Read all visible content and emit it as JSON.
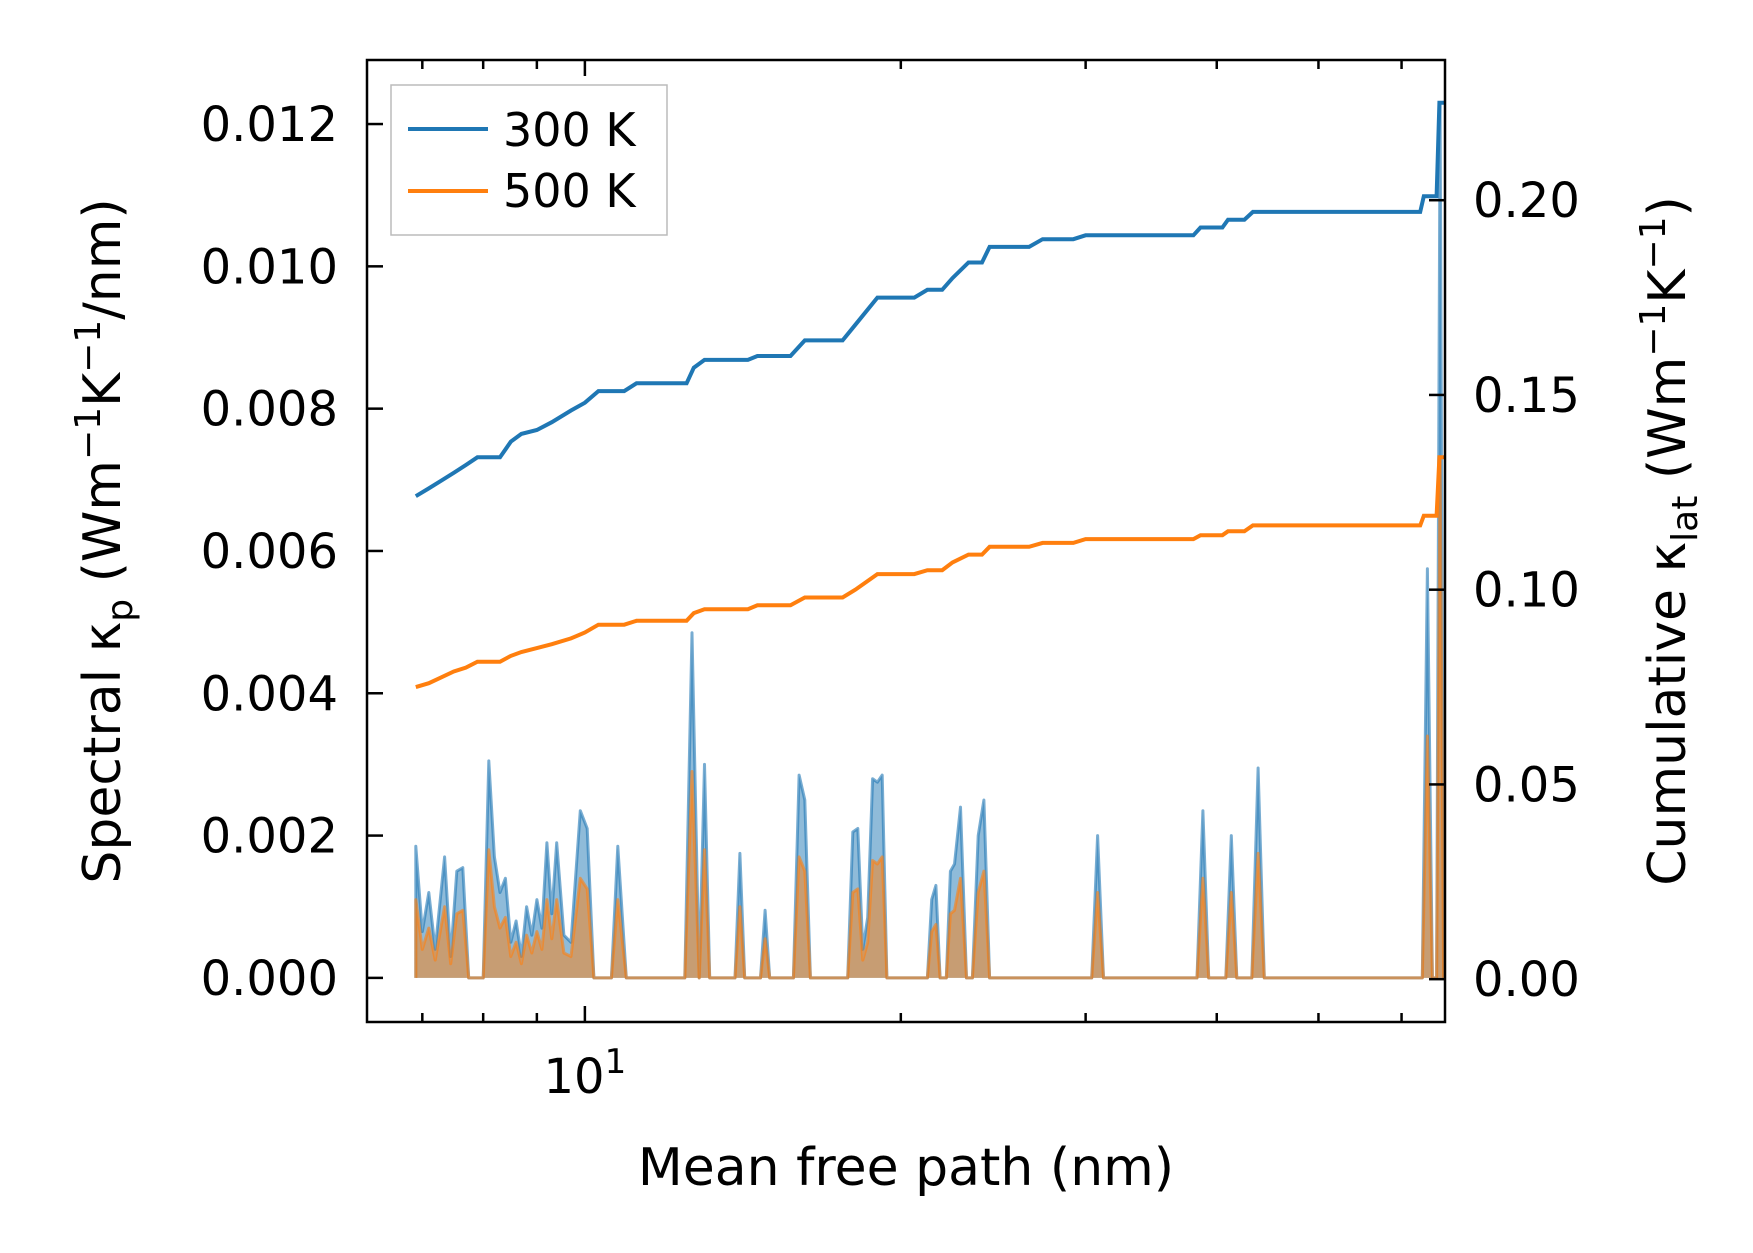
{
  "chart_data": {
    "type": "line",
    "xscale": "log",
    "xlim": [
      6.2,
      66.0
    ],
    "ylim_left": [
      -0.00062,
      0.0129
    ],
    "ylim_right": [
      -0.011,
      0.236
    ],
    "xlabel": "Mean free path (nm)",
    "ylabel_left": {
      "main": "Spectral κ",
      "sub": "p",
      "units_pre": " (Wm",
      "sup1": "−1",
      "mid": "K",
      "sup2": "−1",
      "post": "/nm)"
    },
    "ylabel_right": {
      "main": "Cumulative κ",
      "sub": "lat",
      "units_pre": " (Wm",
      "sup1": "−1",
      "mid": "K",
      "sup2": "−1",
      "post": ")"
    },
    "x_major_ticks": [
      {
        "value": 10,
        "base": "10",
        "exp": "1"
      }
    ],
    "x_minor_ticks": [
      7,
      8,
      9,
      20,
      30,
      40,
      50,
      60
    ],
    "yticks_left": [
      "0.000",
      "0.002",
      "0.004",
      "0.006",
      "0.008",
      "0.010",
      "0.012"
    ],
    "yticks_left_values": [
      0,
      0.002,
      0.004,
      0.006,
      0.008,
      0.01,
      0.012
    ],
    "yticks_right": [
      "0.00",
      "0.05",
      "0.10",
      "0.15",
      "0.20"
    ],
    "yticks_right_values": [
      0,
      0.05,
      0.1,
      0.15,
      0.2
    ],
    "legend": {
      "position": "top-left",
      "entries": [
        "300 K",
        "500 K"
      ]
    },
    "colors": {
      "s300": "#1f77b4",
      "s500": "#ff7f0e"
    },
    "spectral": [
      {
        "name": "300 K",
        "points": [
          [
            6.9,
            0.0
          ],
          [
            6.9,
            0.00185
          ],
          [
            7.0,
            0.00065
          ],
          [
            7.1,
            0.0012
          ],
          [
            7.2,
            0.0004
          ],
          [
            7.35,
            0.0017
          ],
          [
            7.45,
            0.0003
          ],
          [
            7.55,
            0.0015
          ],
          [
            7.65,
            0.00155
          ],
          [
            7.75,
            0.0
          ],
          [
            8.0,
            0.0
          ],
          [
            8.1,
            0.00305
          ],
          [
            8.2,
            0.0017
          ],
          [
            8.3,
            0.0012
          ],
          [
            8.4,
            0.0014
          ],
          [
            8.5,
            0.0005
          ],
          [
            8.6,
            0.0008
          ],
          [
            8.7,
            0.0003
          ],
          [
            8.8,
            0.001
          ],
          [
            8.9,
            0.0006
          ],
          [
            9.0,
            0.0011
          ],
          [
            9.1,
            0.0007
          ],
          [
            9.2,
            0.0019
          ],
          [
            9.3,
            0.0009
          ],
          [
            9.4,
            0.0019
          ],
          [
            9.55,
            0.0006
          ],
          [
            9.7,
            0.0005
          ],
          [
            9.9,
            0.00235
          ],
          [
            10.05,
            0.0021
          ],
          [
            10.2,
            0.0
          ],
          [
            10.6,
            0.0
          ],
          [
            10.75,
            0.00185
          ],
          [
            10.95,
            0.0
          ],
          [
            12.45,
            0.0
          ],
          [
            12.65,
            0.00485
          ],
          [
            12.85,
            0.0
          ],
          [
            13.0,
            0.003
          ],
          [
            13.15,
            0.0
          ],
          [
            13.9,
            0.0
          ],
          [
            14.05,
            0.00175
          ],
          [
            14.2,
            0.0
          ],
          [
            14.7,
            0.0
          ],
          [
            14.85,
            0.00095
          ],
          [
            15.0,
            0.0
          ],
          [
            15.8,
            0.0
          ],
          [
            16.0,
            0.00285
          ],
          [
            16.2,
            0.0025
          ],
          [
            16.4,
            0.0
          ],
          [
            17.8,
            0.0
          ],
          [
            18.0,
            0.00205
          ],
          [
            18.2,
            0.0021
          ],
          [
            18.4,
            0.0004
          ],
          [
            18.6,
            0.00085
          ],
          [
            18.8,
            0.0028
          ],
          [
            19.0,
            0.00275
          ],
          [
            19.2,
            0.00285
          ],
          [
            19.4,
            0.0
          ],
          [
            21.2,
            0.0
          ],
          [
            21.4,
            0.0011
          ],
          [
            21.6,
            0.0013
          ],
          [
            21.8,
            0.0
          ],
          [
            22.1,
            0.0
          ],
          [
            22.3,
            0.0015
          ],
          [
            22.5,
            0.0016
          ],
          [
            22.8,
            0.0024
          ],
          [
            23.1,
            0.0
          ],
          [
            23.4,
            0.0
          ],
          [
            23.7,
            0.002
          ],
          [
            24.0,
            0.0025
          ],
          [
            24.3,
            0.0
          ],
          [
            30.4,
            0.0
          ],
          [
            30.8,
            0.002
          ],
          [
            31.2,
            0.0
          ],
          [
            38.3,
            0.0
          ],
          [
            38.8,
            0.00235
          ],
          [
            39.3,
            0.0
          ],
          [
            40.8,
            0.0
          ],
          [
            41.3,
            0.002
          ],
          [
            41.8,
            0.0
          ],
          [
            43.2,
            0.0
          ],
          [
            43.8,
            0.00295
          ],
          [
            44.4,
            0.0
          ],
          [
            62.8,
            0.0
          ],
          [
            63.5,
            0.00575
          ],
          [
            64.2,
            0.0
          ],
          [
            64.8,
            0.0
          ],
          [
            65.3,
            0.0123
          ],
          [
            65.8,
            0.0
          ]
        ]
      },
      {
        "name": "500 K",
        "points": [
          [
            6.9,
            0.0
          ],
          [
            6.9,
            0.0011
          ],
          [
            7.0,
            0.0004
          ],
          [
            7.1,
            0.0007
          ],
          [
            7.2,
            0.00025
          ],
          [
            7.35,
            0.001
          ],
          [
            7.45,
            0.0002
          ],
          [
            7.55,
            0.0009
          ],
          [
            7.65,
            0.00095
          ],
          [
            7.75,
            0.0
          ],
          [
            8.0,
            0.0
          ],
          [
            8.1,
            0.0018
          ],
          [
            8.2,
            0.001
          ],
          [
            8.3,
            0.0007
          ],
          [
            8.4,
            0.00085
          ],
          [
            8.5,
            0.0003
          ],
          [
            8.6,
            0.0005
          ],
          [
            8.7,
            0.0002
          ],
          [
            8.8,
            0.0006
          ],
          [
            8.9,
            0.00035
          ],
          [
            9.0,
            0.00065
          ],
          [
            9.1,
            0.0004
          ],
          [
            9.2,
            0.0011
          ],
          [
            9.3,
            0.00055
          ],
          [
            9.4,
            0.0011
          ],
          [
            9.55,
            0.00035
          ],
          [
            9.7,
            0.0003
          ],
          [
            9.9,
            0.0014
          ],
          [
            10.05,
            0.00125
          ],
          [
            10.2,
            0.0
          ],
          [
            10.6,
            0.0
          ],
          [
            10.75,
            0.0011
          ],
          [
            10.95,
            0.0
          ],
          [
            12.45,
            0.0
          ],
          [
            12.65,
            0.0029
          ],
          [
            12.85,
            0.0
          ],
          [
            13.0,
            0.0018
          ],
          [
            13.15,
            0.0
          ],
          [
            13.9,
            0.0
          ],
          [
            14.05,
            0.001
          ],
          [
            14.2,
            0.0
          ],
          [
            14.7,
            0.0
          ],
          [
            14.85,
            0.00055
          ],
          [
            15.0,
            0.0
          ],
          [
            15.8,
            0.0
          ],
          [
            16.0,
            0.0017
          ],
          [
            16.2,
            0.0015
          ],
          [
            16.4,
            0.0
          ],
          [
            17.8,
            0.0
          ],
          [
            18.0,
            0.0012
          ],
          [
            18.2,
            0.00125
          ],
          [
            18.4,
            0.00025
          ],
          [
            18.6,
            0.0005
          ],
          [
            18.8,
            0.00165
          ],
          [
            19.0,
            0.0016
          ],
          [
            19.2,
            0.0017
          ],
          [
            19.4,
            0.0
          ],
          [
            21.2,
            0.0
          ],
          [
            21.4,
            0.00065
          ],
          [
            21.6,
            0.00075
          ],
          [
            21.8,
            0.0
          ],
          [
            22.1,
            0.0
          ],
          [
            22.3,
            0.0009
          ],
          [
            22.5,
            0.00095
          ],
          [
            22.8,
            0.0014
          ],
          [
            23.1,
            0.0
          ],
          [
            23.4,
            0.0
          ],
          [
            23.7,
            0.0012
          ],
          [
            24.0,
            0.0015
          ],
          [
            24.3,
            0.0
          ],
          [
            30.4,
            0.0
          ],
          [
            30.8,
            0.0012
          ],
          [
            31.2,
            0.0
          ],
          [
            38.3,
            0.0
          ],
          [
            38.8,
            0.0014
          ],
          [
            39.3,
            0.0
          ],
          [
            40.8,
            0.0
          ],
          [
            41.3,
            0.0012
          ],
          [
            41.8,
            0.0
          ],
          [
            43.2,
            0.0
          ],
          [
            43.8,
            0.00175
          ],
          [
            44.4,
            0.0
          ],
          [
            62.8,
            0.0
          ],
          [
            63.5,
            0.0034
          ],
          [
            64.2,
            0.0
          ],
          [
            64.8,
            0.0
          ],
          [
            65.3,
            0.0073
          ],
          [
            65.8,
            0.0
          ]
        ]
      }
    ],
    "cumulative": [
      {
        "name": "300 K",
        "points": [
          [
            6.9,
            0.124
          ],
          [
            7.1,
            0.126
          ],
          [
            7.3,
            0.128
          ],
          [
            7.5,
            0.13
          ],
          [
            7.7,
            0.132
          ],
          [
            7.9,
            0.134
          ],
          [
            8.3,
            0.134
          ],
          [
            8.5,
            0.138
          ],
          [
            8.7,
            0.14
          ],
          [
            9.0,
            0.141
          ],
          [
            9.3,
            0.143
          ],
          [
            9.7,
            0.146
          ],
          [
            10.0,
            0.148
          ],
          [
            10.3,
            0.151
          ],
          [
            10.9,
            0.151
          ],
          [
            11.2,
            0.153
          ],
          [
            12.0,
            0.153
          ],
          [
            12.5,
            0.153
          ],
          [
            12.7,
            0.157
          ],
          [
            13.0,
            0.159
          ],
          [
            14.3,
            0.159
          ],
          [
            14.6,
            0.16
          ],
          [
            15.7,
            0.16
          ],
          [
            16.2,
            0.164
          ],
          [
            17.6,
            0.164
          ],
          [
            18.1,
            0.168
          ],
          [
            19.0,
            0.175
          ],
          [
            19.5,
            0.175
          ],
          [
            20.6,
            0.175
          ],
          [
            21.2,
            0.177
          ],
          [
            21.9,
            0.177
          ],
          [
            22.4,
            0.18
          ],
          [
            23.2,
            0.184
          ],
          [
            23.9,
            0.184
          ],
          [
            24.3,
            0.188
          ],
          [
            26.5,
            0.188
          ],
          [
            27.3,
            0.19
          ],
          [
            28.3,
            0.19
          ],
          [
            29.2,
            0.19
          ],
          [
            30.0,
            0.191
          ],
          [
            31.0,
            0.191
          ],
          [
            38.0,
            0.191
          ],
          [
            38.6,
            0.193
          ],
          [
            40.5,
            0.193
          ],
          [
            41.0,
            0.195
          ],
          [
            42.5,
            0.195
          ],
          [
            43.3,
            0.197
          ],
          [
            62.5,
            0.197
          ],
          [
            63.0,
            0.201
          ],
          [
            64.8,
            0.201
          ],
          [
            65.2,
            0.225
          ],
          [
            66.0,
            0.225
          ]
        ]
      },
      {
        "name": "500 K",
        "points": [
          [
            6.9,
            0.075
          ],
          [
            7.1,
            0.076
          ],
          [
            7.3,
            0.0775
          ],
          [
            7.5,
            0.079
          ],
          [
            7.7,
            0.08
          ],
          [
            7.9,
            0.0815
          ],
          [
            8.3,
            0.0815
          ],
          [
            8.5,
            0.083
          ],
          [
            8.7,
            0.084
          ],
          [
            9.0,
            0.085
          ],
          [
            9.3,
            0.086
          ],
          [
            9.7,
            0.0875
          ],
          [
            10.0,
            0.089
          ],
          [
            10.3,
            0.091
          ],
          [
            10.9,
            0.091
          ],
          [
            11.2,
            0.092
          ],
          [
            12.0,
            0.092
          ],
          [
            12.5,
            0.092
          ],
          [
            12.7,
            0.094
          ],
          [
            13.0,
            0.095
          ],
          [
            14.3,
            0.095
          ],
          [
            14.6,
            0.096
          ],
          [
            15.7,
            0.096
          ],
          [
            16.2,
            0.098
          ],
          [
            17.6,
            0.098
          ],
          [
            18.1,
            0.1
          ],
          [
            19.0,
            0.104
          ],
          [
            19.5,
            0.104
          ],
          [
            20.6,
            0.104
          ],
          [
            21.2,
            0.105
          ],
          [
            21.9,
            0.105
          ],
          [
            22.4,
            0.107
          ],
          [
            23.2,
            0.109
          ],
          [
            23.9,
            0.109
          ],
          [
            24.3,
            0.111
          ],
          [
            26.5,
            0.111
          ],
          [
            27.3,
            0.112
          ],
          [
            29.2,
            0.112
          ],
          [
            30.0,
            0.113
          ],
          [
            31.0,
            0.113
          ],
          [
            38.0,
            0.113
          ],
          [
            38.6,
            0.114
          ],
          [
            40.5,
            0.114
          ],
          [
            41.0,
            0.115
          ],
          [
            42.5,
            0.115
          ],
          [
            43.3,
            0.1165
          ],
          [
            62.5,
            0.1165
          ],
          [
            63.0,
            0.119
          ],
          [
            64.8,
            0.119
          ],
          [
            65.2,
            0.134
          ],
          [
            66.0,
            0.134
          ]
        ]
      }
    ]
  }
}
